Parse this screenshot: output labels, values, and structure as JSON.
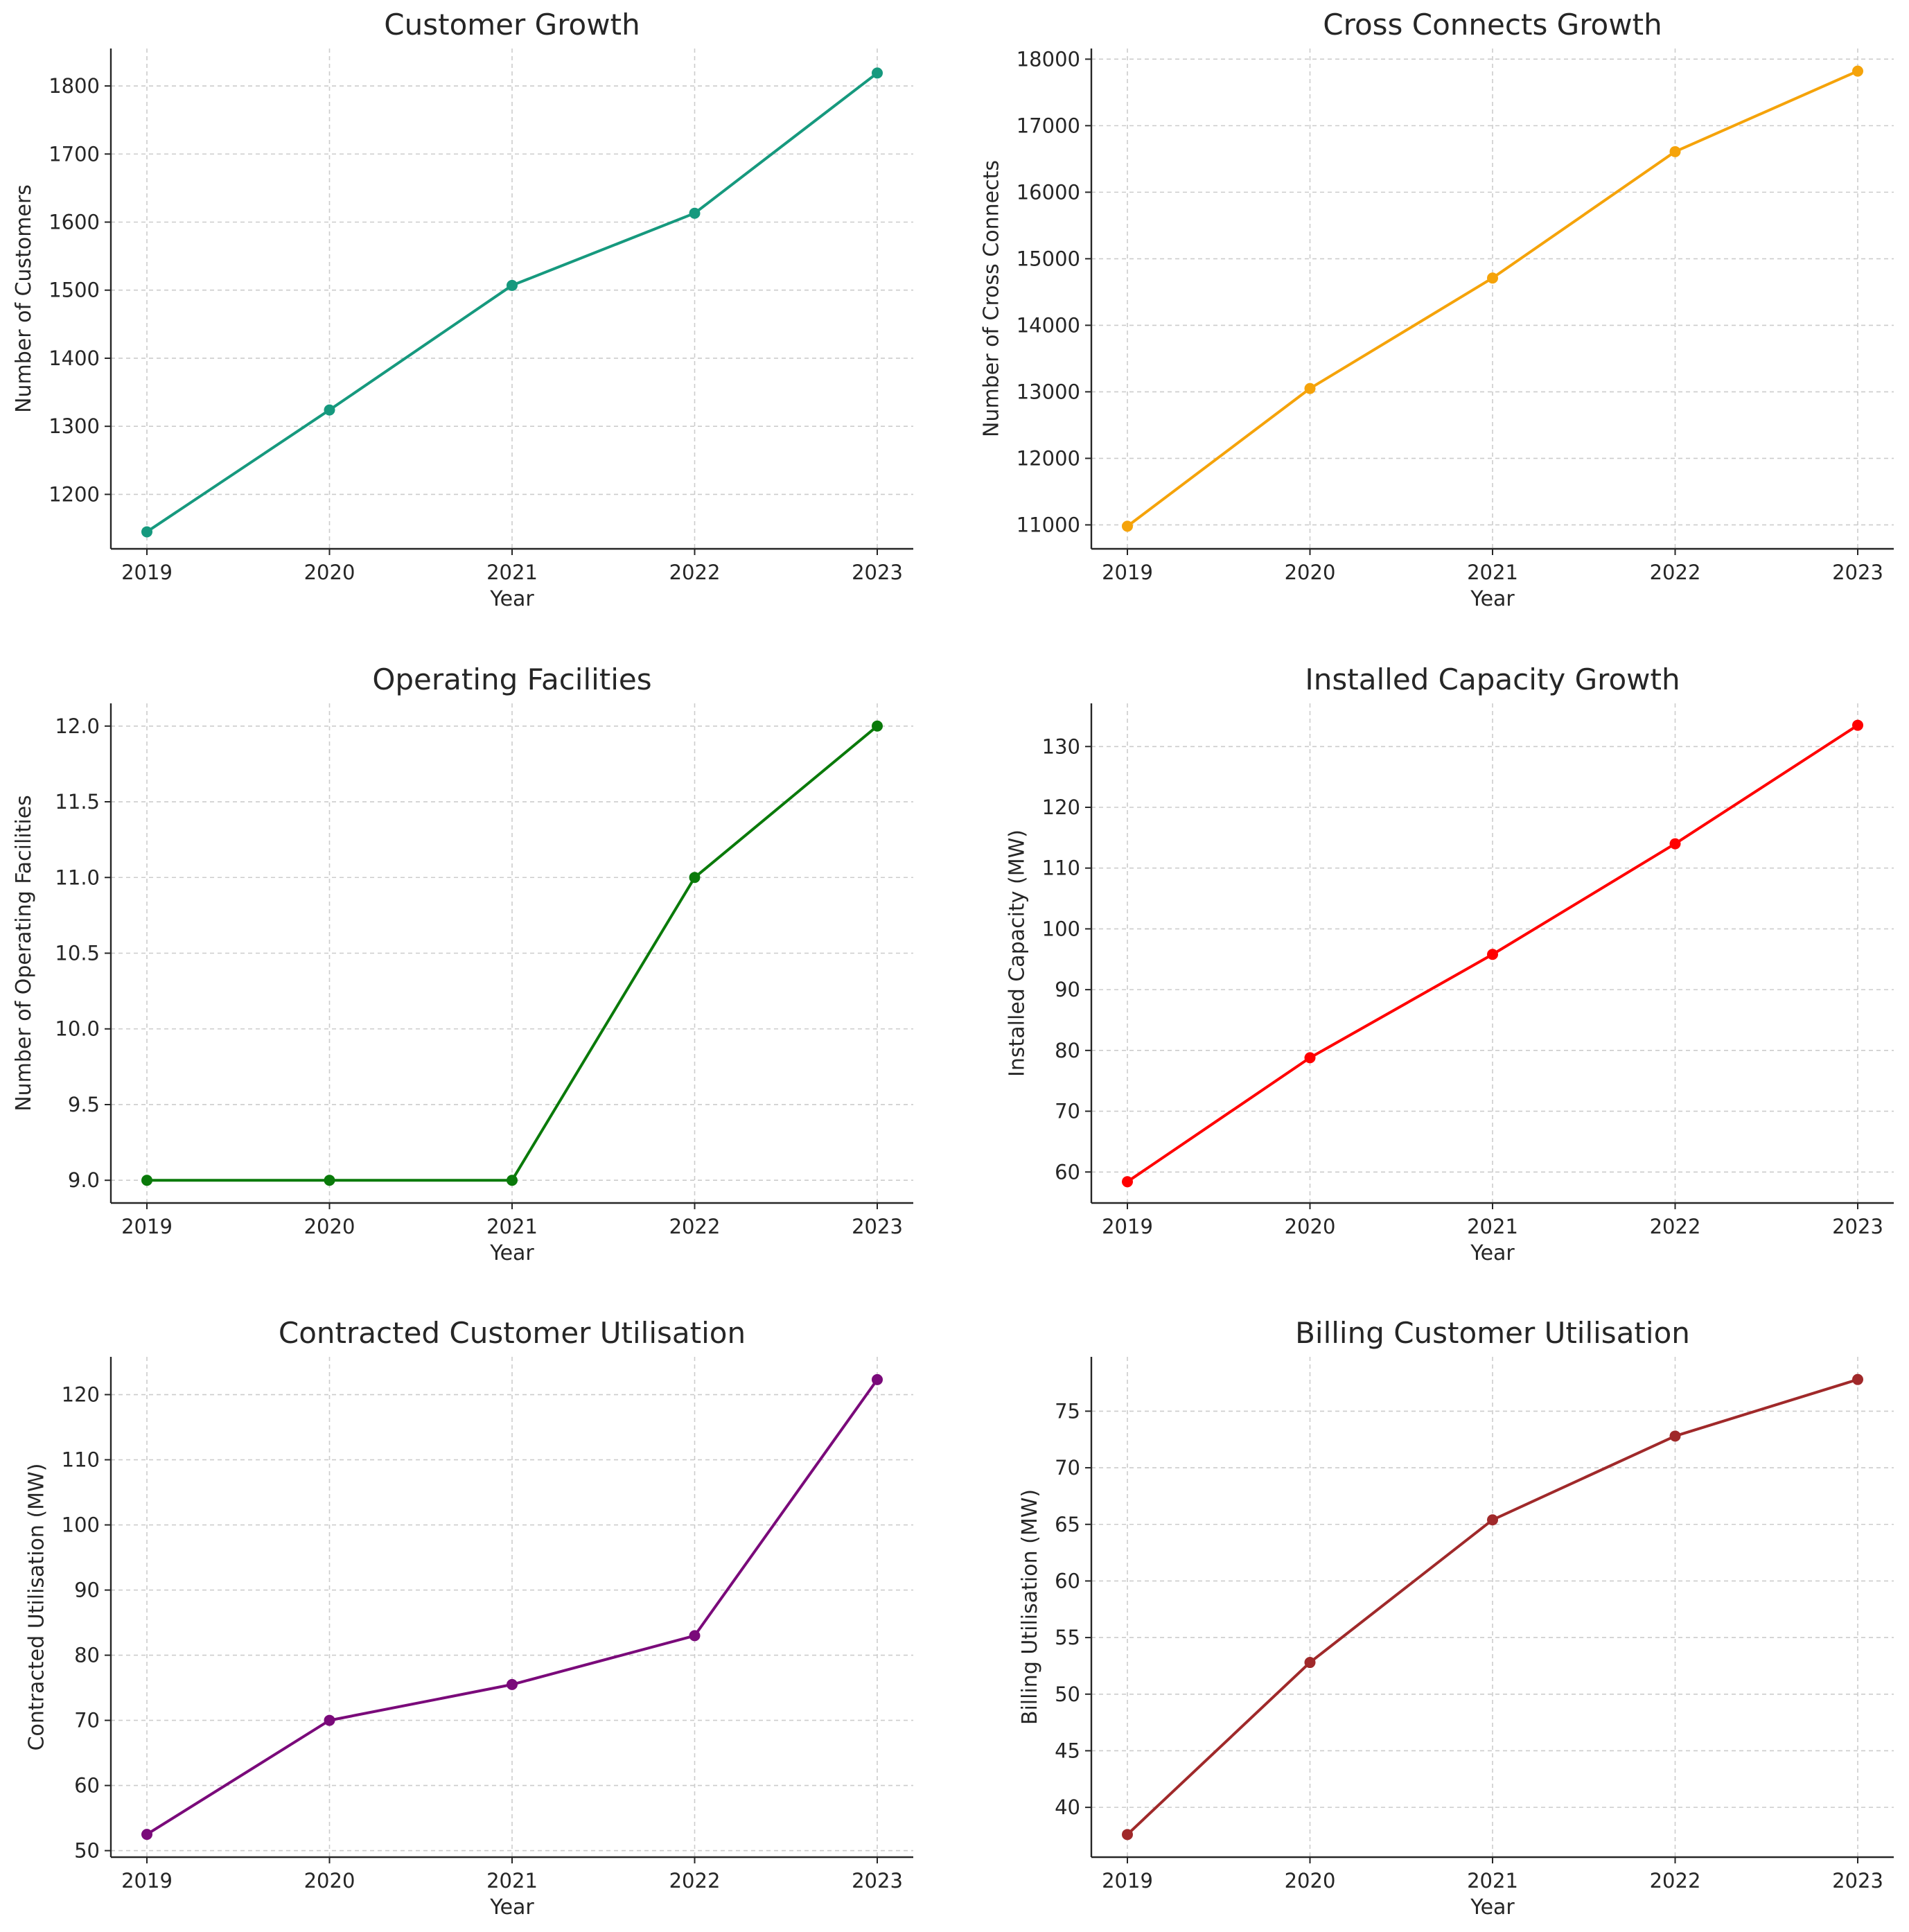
{
  "chart_data": [
    {
      "type": "line",
      "title": "Customer Growth",
      "xlabel": "Year",
      "ylabel": "Number of Customers",
      "x": [
        "2019",
        "2020",
        "2021",
        "2022",
        "2023"
      ],
      "values": [
        1145,
        1324,
        1507,
        1613,
        1819
      ],
      "ylim": [
        1120,
        1855
      ],
      "yticks": [
        1200,
        1300,
        1400,
        1500,
        1600,
        1700,
        1800
      ],
      "ytick_labels": [
        "1200",
        "1300",
        "1400",
        "1500",
        "1600",
        "1700",
        "1800"
      ],
      "color": "#16997e",
      "grid": true
    },
    {
      "type": "line",
      "title": "Cross Connects Growth",
      "xlabel": "Year",
      "ylabel": "Number of Cross Connects",
      "x": [
        "2019",
        "2020",
        "2021",
        "2022",
        "2023"
      ],
      "values": [
        10980,
        13050,
        14710,
        16610,
        17820
      ],
      "ylim": [
        10640,
        18160
      ],
      "yticks": [
        11000,
        12000,
        13000,
        14000,
        15000,
        16000,
        17000,
        18000
      ],
      "ytick_labels": [
        "11000",
        "12000",
        "13000",
        "14000",
        "15000",
        "16000",
        "17000",
        "18000"
      ],
      "color": "#f5a30a",
      "grid": true
    },
    {
      "type": "line",
      "title": "Operating Facilities",
      "xlabel": "Year",
      "ylabel": "Number of Operating Facilities",
      "x": [
        "2019",
        "2020",
        "2021",
        "2022",
        "2023"
      ],
      "values": [
        9,
        9,
        9,
        11,
        12
      ],
      "ylim": [
        8.85,
        12.15
      ],
      "yticks": [
        9.0,
        9.5,
        10.0,
        10.5,
        11.0,
        11.5,
        12.0
      ],
      "ytick_labels": [
        "9.0",
        "9.5",
        "10.0",
        "10.5",
        "11.0",
        "11.5",
        "12.0"
      ],
      "color": "#0a7a0a",
      "grid": true
    },
    {
      "type": "line",
      "title": "Installed Capacity Growth",
      "xlabel": "Year",
      "ylabel": "Installed Capacity (MW)",
      "x": [
        "2019",
        "2020",
        "2021",
        "2022",
        "2023"
      ],
      "values": [
        58.4,
        78.8,
        95.8,
        114.0,
        133.5
      ],
      "ylim": [
        54.9,
        137.1
      ],
      "yticks": [
        60,
        70,
        80,
        90,
        100,
        110,
        120,
        130
      ],
      "ytick_labels": [
        "60",
        "70",
        "80",
        "90",
        "100",
        "110",
        "120",
        "130"
      ],
      "color": "#ff0000",
      "grid": true
    },
    {
      "type": "line",
      "title": "Contracted Customer Utilisation",
      "xlabel": "Year",
      "ylabel": "Contracted Utilisation (MW)",
      "x": [
        "2019",
        "2020",
        "2021",
        "2022",
        "2023"
      ],
      "values": [
        52.5,
        70.0,
        75.5,
        83.0,
        122.3
      ],
      "ylim": [
        49.0,
        125.8
      ],
      "yticks": [
        50,
        60,
        70,
        80,
        90,
        100,
        110,
        120
      ],
      "ytick_labels": [
        "50",
        "60",
        "70",
        "80",
        "90",
        "100",
        "110",
        "120"
      ],
      "color": "#7a0a7a",
      "grid": true
    },
    {
      "type": "line",
      "title": "Billing Customer Utilisation",
      "xlabel": "Year",
      "ylabel": "Billing Utilisation (MW)",
      "x": [
        "2019",
        "2020",
        "2021",
        "2022",
        "2023"
      ],
      "values": [
        37.6,
        52.8,
        65.4,
        72.8,
        77.8
      ],
      "ylim": [
        35.6,
        79.8
      ],
      "yticks": [
        40,
        45,
        50,
        55,
        60,
        65,
        70,
        75
      ],
      "ytick_labels": [
        "40",
        "45",
        "50",
        "55",
        "60",
        "65",
        "70",
        "75"
      ],
      "color": "#a0292a",
      "grid": true
    }
  ]
}
